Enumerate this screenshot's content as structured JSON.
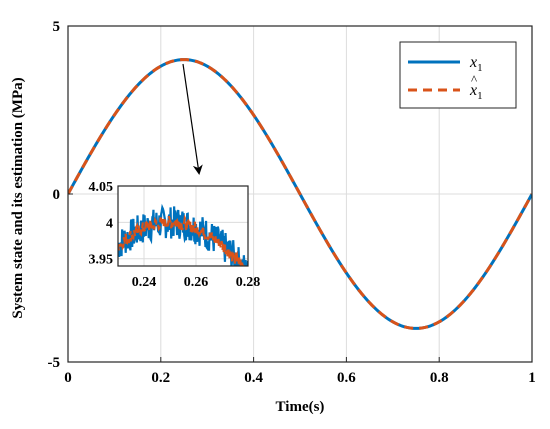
{
  "chart_data": {
    "type": "line",
    "xlabel": "Time(s)",
    "ylabel": "System state and its estimation (MPa)",
    "xlim": [
      0,
      1
    ],
    "ylim": [
      -5,
      5
    ],
    "x_ticks": [
      "0",
      "0.2",
      "0.4",
      "0.6",
      "0.8",
      "1"
    ],
    "y_ticks": [
      "-5",
      "0",
      "5"
    ],
    "grid": true,
    "legend_position": "top-right",
    "series": [
      {
        "name": "x_1",
        "color": "#0072BD",
        "style": "solid",
        "function": "4*sin(2*pi*t)",
        "x": [
          0,
          0.05,
          0.1,
          0.15,
          0.2,
          0.25,
          0.3,
          0.35,
          0.4,
          0.45,
          0.5,
          0.55,
          0.6,
          0.65,
          0.7,
          0.75,
          0.8,
          0.85,
          0.9,
          0.95,
          1.0
        ],
        "values": [
          0,
          1.24,
          2.35,
          3.24,
          3.8,
          4.0,
          3.8,
          3.24,
          2.35,
          1.24,
          0,
          -1.24,
          -2.35,
          -3.24,
          -3.8,
          -4.0,
          -3.8,
          -3.24,
          -2.35,
          -1.24,
          0
        ]
      },
      {
        "name": "x̂_1",
        "color": "#D95319",
        "style": "dashed",
        "function": "4*sin(2*pi*t)",
        "x": [
          0,
          0.05,
          0.1,
          0.15,
          0.2,
          0.25,
          0.3,
          0.35,
          0.4,
          0.45,
          0.5,
          0.55,
          0.6,
          0.65,
          0.7,
          0.75,
          0.8,
          0.85,
          0.9,
          0.95,
          1.0
        ],
        "values": [
          0,
          1.24,
          2.35,
          3.24,
          3.8,
          4.0,
          3.8,
          3.24,
          2.35,
          1.24,
          0,
          -1.24,
          -2.35,
          -3.24,
          -3.8,
          -4.0,
          -3.8,
          -3.24,
          -2.35,
          -1.24,
          0
        ]
      }
    ],
    "legend": [
      {
        "label_main": "x",
        "label_sub": "1",
        "hat": false,
        "color": "#0072BD",
        "style": "solid"
      },
      {
        "label_main": "x",
        "label_sub": "1",
        "hat": true,
        "color": "#D95319",
        "style": "dashed"
      }
    ],
    "inset": {
      "xlim": [
        0.23,
        0.28
      ],
      "ylim": [
        3.94,
        4.05
      ],
      "x_ticks": [
        "0.24",
        "0.26",
        "0.28"
      ],
      "y_ticks": [
        "3.95",
        "4",
        "4.05"
      ],
      "annotation": "arrow from main curve peak to zoomed inset"
    }
  }
}
